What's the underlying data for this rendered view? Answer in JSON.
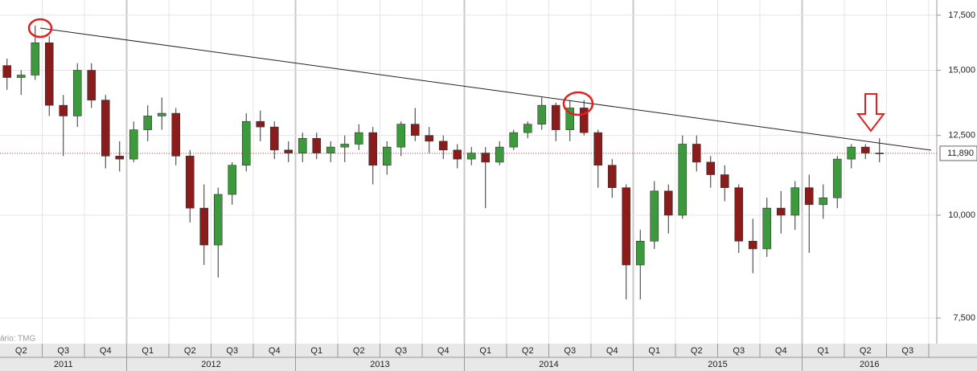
{
  "chart_data": {
    "type": "candlestick",
    "open": [
      15200,
      14700,
      14800,
      16200,
      13600,
      13200,
      15000,
      13800,
      11800,
      11700,
      12700,
      13200,
      13300,
      11800,
      10200,
      9200,
      10600,
      11500,
      13000,
      12800,
      12000,
      11900,
      12400,
      11900,
      12100,
      12200,
      12600,
      11500,
      12100,
      12900,
      12500,
      12300,
      12000,
      11700,
      11900,
      11600,
      12100,
      12600,
      12900,
      13600,
      12700,
      13500,
      12600,
      11500,
      10800,
      8700,
      9300,
      10700,
      10000,
      12200,
      11600,
      11200,
      10800,
      9300,
      9100,
      10200,
      10000,
      10800,
      10300,
      10500,
      11700,
      12100,
      11900
    ],
    "high": [
      15500,
      15000,
      17000,
      16500,
      14000,
      15300,
      15300,
      14000,
      12300,
      13000,
      13600,
      13900,
      13500,
      12000,
      10900,
      10800,
      11600,
      13300,
      13400,
      13000,
      12300,
      12600,
      12600,
      12300,
      12500,
      12900,
      12800,
      12300,
      13000,
      13500,
      12800,
      12500,
      12200,
      12100,
      12100,
      12300,
      12700,
      13000,
      13900,
      13700,
      13800,
      13800,
      12700,
      11700,
      10900,
      9600,
      11000,
      10900,
      12500,
      12500,
      11800,
      11500,
      10900,
      9900,
      10500,
      10700,
      11000,
      11200,
      10900,
      11800,
      12200,
      12200,
      12400
    ],
    "low": [
      14200,
      14000,
      14600,
      13200,
      11800,
      12800,
      13500,
      11400,
      11300,
      11600,
      12300,
      12700,
      11500,
      9800,
      8700,
      8400,
      10300,
      11300,
      12300,
      11700,
      11600,
      11600,
      11700,
      11600,
      11600,
      12000,
      10900,
      11200,
      11800,
      12300,
      11900,
      11700,
      11400,
      11500,
      10200,
      11500,
      12000,
      12400,
      12700,
      12300,
      12300,
      12500,
      10800,
      10500,
      7900,
      7900,
      9100,
      9500,
      9900,
      11300,
      10800,
      10400,
      9000,
      8500,
      8900,
      9500,
      9600,
      9000,
      9900,
      10200,
      11400,
      11700,
      11600
    ],
    "close": [
      14700,
      14800,
      16200,
      13600,
      13200,
      15000,
      13800,
      11800,
      11700,
      12700,
      13200,
      13300,
      11800,
      10200,
      9200,
      10600,
      11500,
      13000,
      12800,
      12000,
      11900,
      12400,
      11900,
      12100,
      12200,
      12600,
      11500,
      12100,
      12900,
      12500,
      12300,
      12000,
      11700,
      11900,
      11600,
      12100,
      12600,
      12900,
      13600,
      12700,
      13500,
      12600,
      11500,
      10800,
      8700,
      9300,
      10700,
      10000,
      12200,
      11600,
      11200,
      10800,
      9300,
      9100,
      10200,
      10000,
      10800,
      10300,
      10500,
      11700,
      12100,
      11900,
      11890
    ],
    "up_color": "#3c9a3c",
    "down_color": "#8a1c1c",
    "log_scale": true,
    "grid": true,
    "ylim": [
      6980,
      18260
    ],
    "yticks": [
      {
        "value": 7500,
        "label": "7,500"
      },
      {
        "value": 10000,
        "label": "10,000"
      },
      {
        "value": 12500,
        "label": "12,500"
      },
      {
        "value": 15000,
        "label": "15,000"
      },
      {
        "value": 17500,
        "label": "17,500"
      }
    ],
    "last_price": {
      "value": 11890,
      "label": "11,890"
    },
    "quarters": [
      "Q2",
      "Q3",
      "Q4",
      "Q1",
      "Q2",
      "Q3",
      "Q4",
      "Q1",
      "Q2",
      "Q3",
      "Q4",
      "Q1",
      "Q2",
      "Q3",
      "Q4",
      "Q1",
      "Q2",
      "Q3",
      "Q4",
      "Q1",
      "Q2",
      "Q3"
    ],
    "years": [
      "2011",
      "2012",
      "2013",
      "2014",
      "2015",
      "2016"
    ],
    "watermark": "ário: TMG"
  }
}
